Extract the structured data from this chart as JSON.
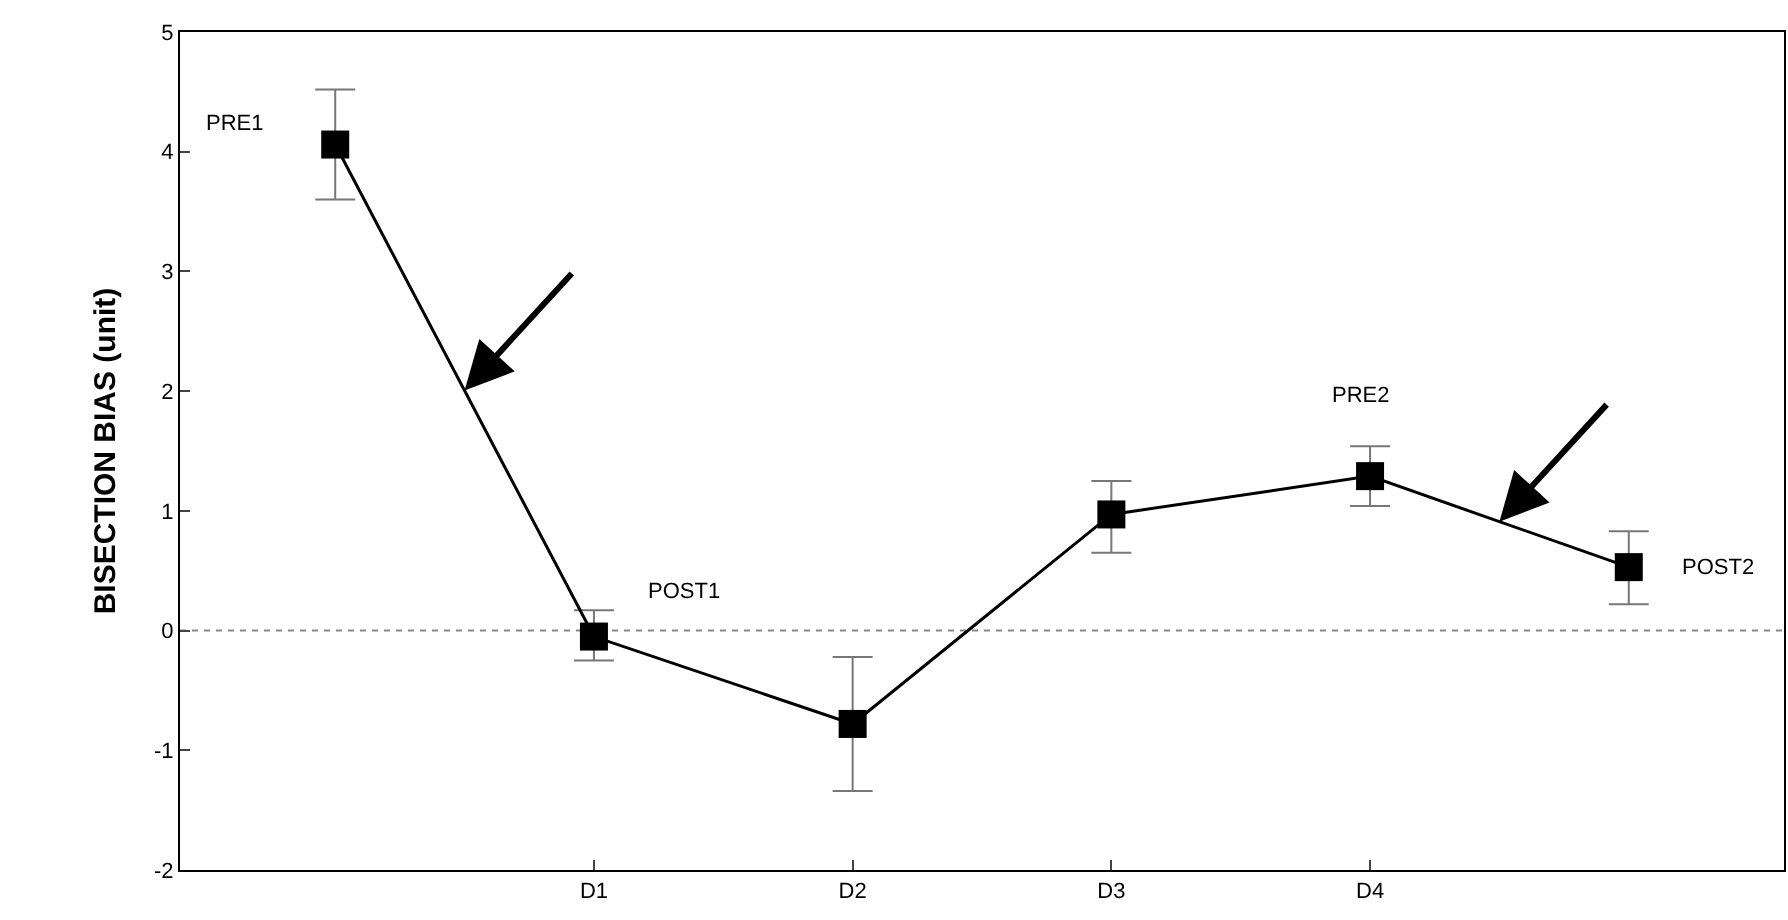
{
  "chart_data": {
    "type": "line",
    "ylabel": "BISECTION BIAS (unit)",
    "categories": [
      null,
      "D1",
      "D2",
      "D3",
      "D4",
      null
    ],
    "series": [
      {
        "color": "#000000",
        "values": [
          4.06,
          -0.05,
          -0.78,
          0.97,
          1.29,
          0.53
        ],
        "errors": [
          [
            3.6,
            4.52
          ],
          [
            -0.25,
            0.17
          ],
          [
            -1.34,
            -0.22
          ],
          [
            0.65,
            1.25
          ],
          [
            1.04,
            1.54
          ],
          [
            0.22,
            0.83
          ]
        ]
      }
    ],
    "ylim": [
      -2,
      5
    ],
    "yticks": [
      -2,
      -1,
      0,
      1,
      2,
      3,
      4,
      5
    ],
    "ref_lines": [
      {
        "axis": "y",
        "value": 0,
        "color": "#888888",
        "line_style": "dotted"
      }
    ],
    "annotations": [
      "PRE1",
      "POST1",
      "PRE2",
      "POST2"
    ],
    "marker": "square",
    "line_style": "solid",
    "grid": false,
    "legend": false
  }
}
